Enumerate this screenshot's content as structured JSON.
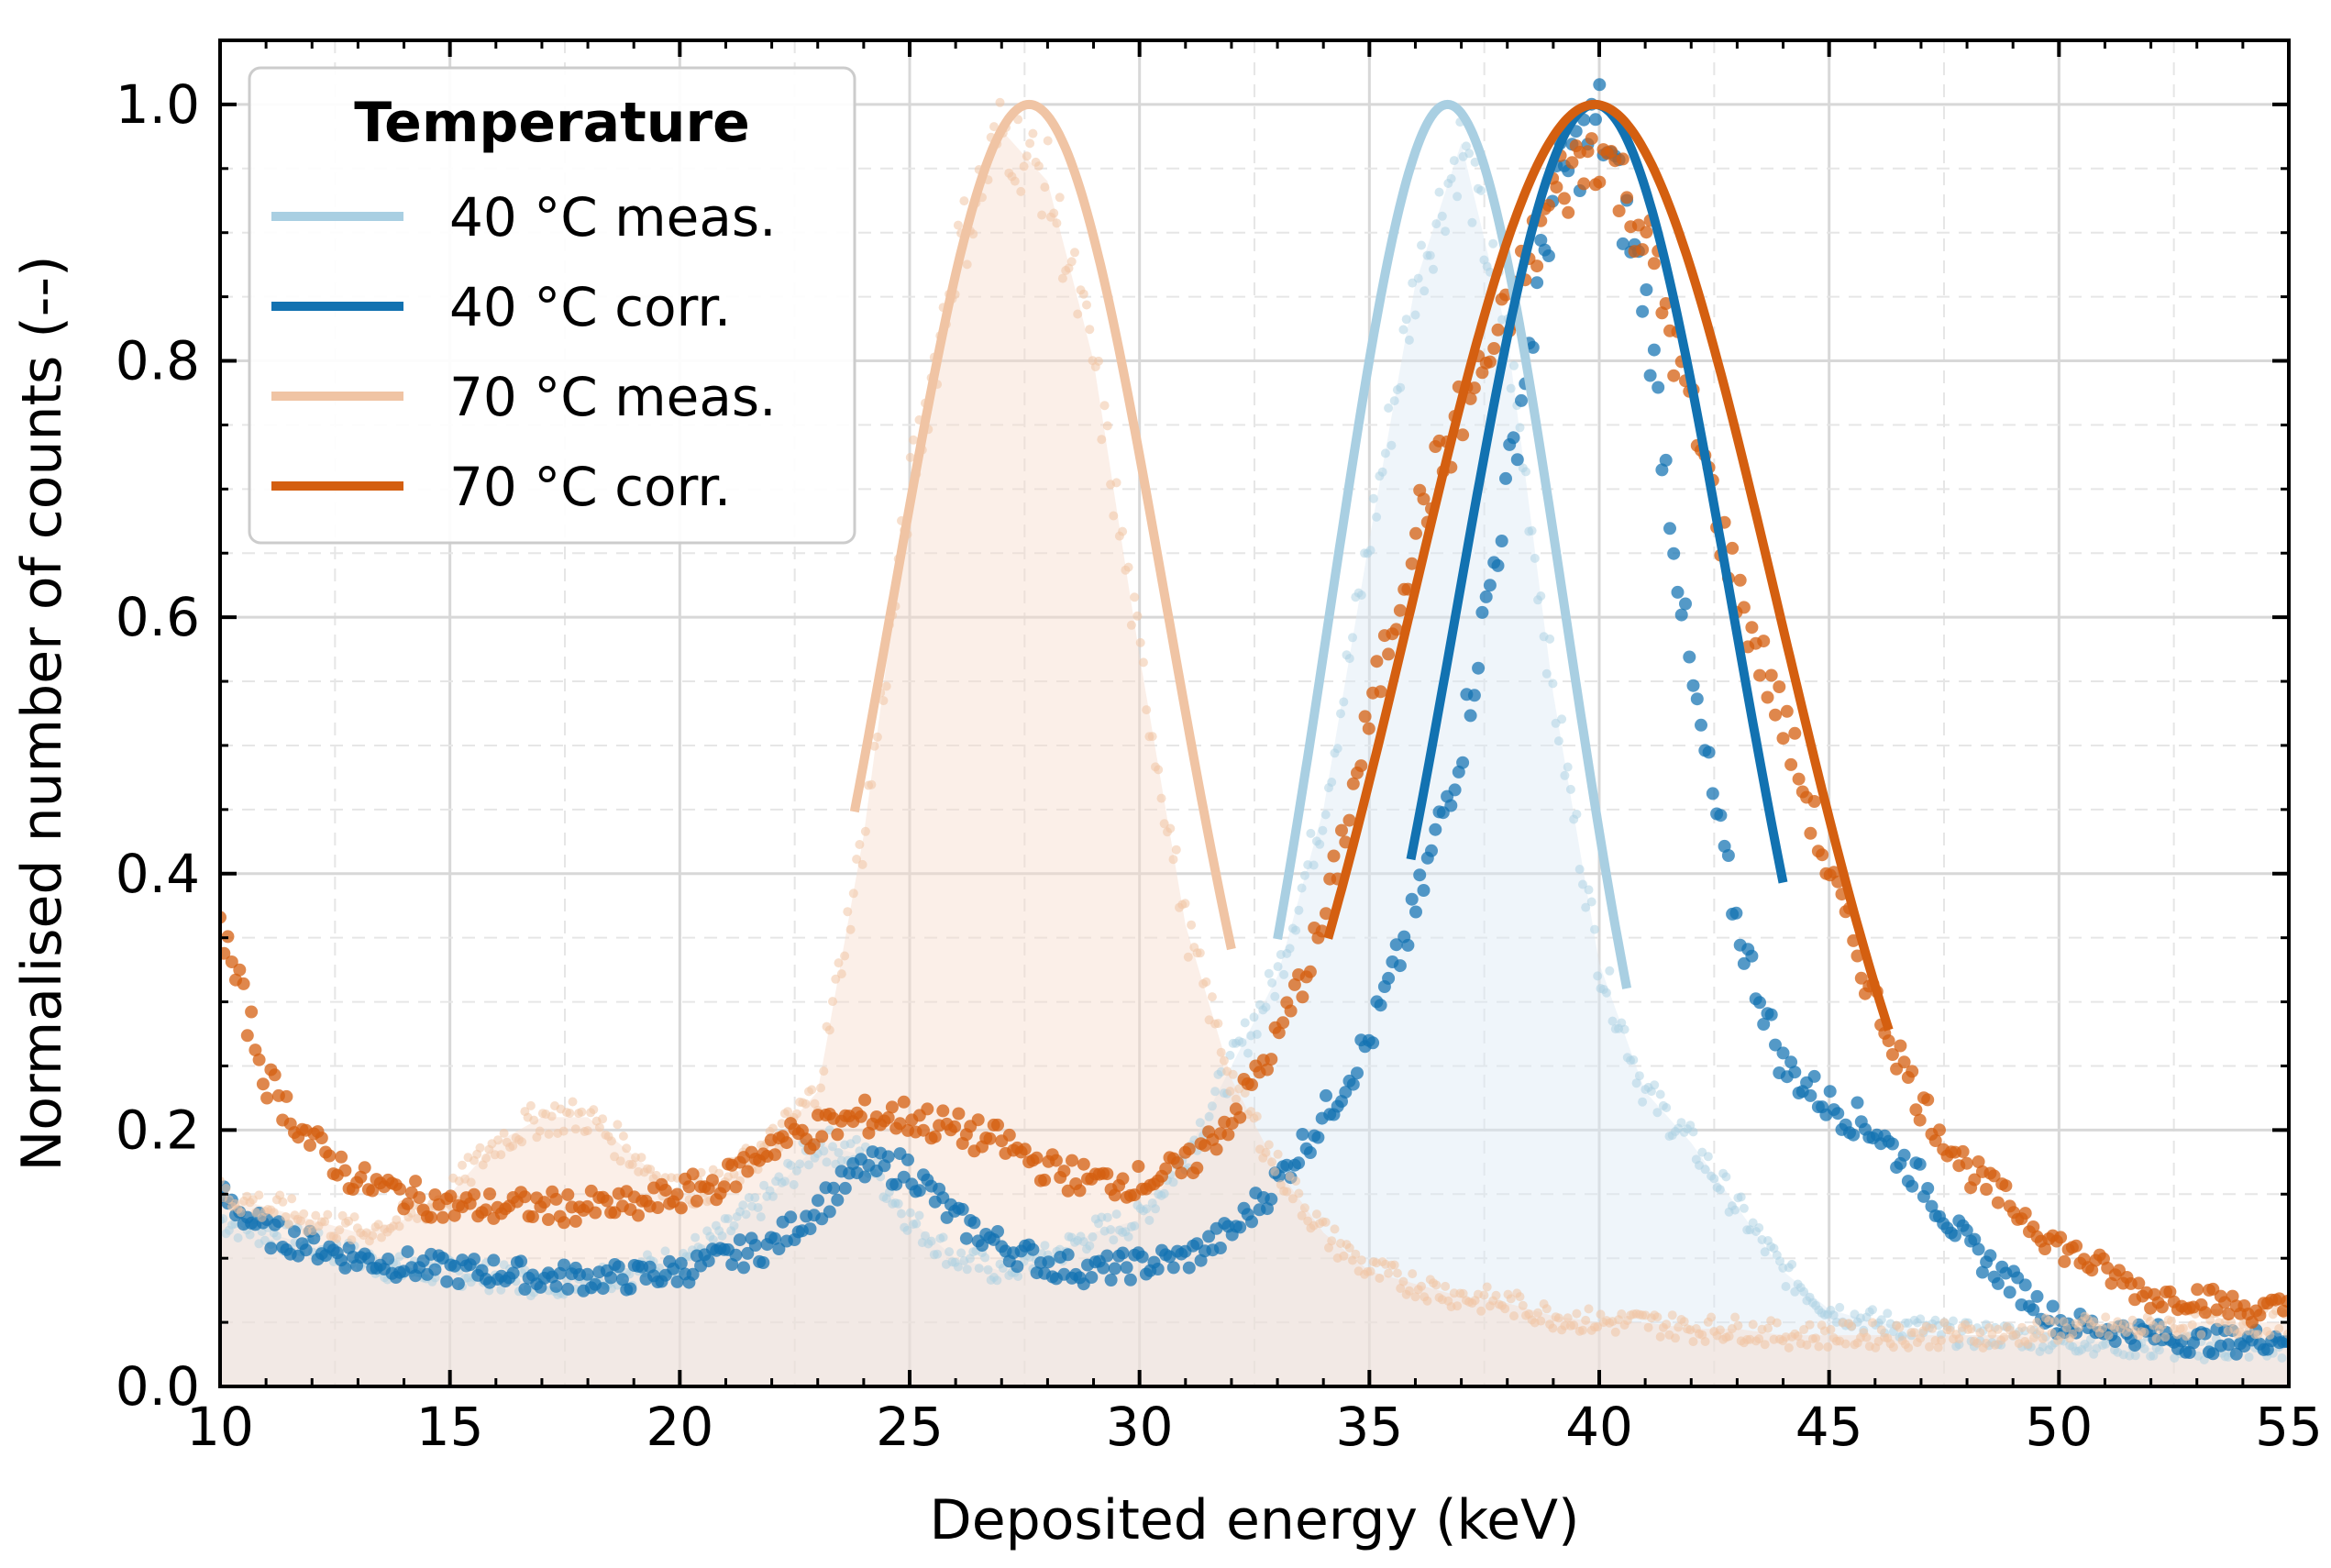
{
  "chart_data": {
    "type": "scatter",
    "title": "",
    "xlabel": "Deposited energy (keV)",
    "ylabel": "Normalised number of counts (--)",
    "xlim": [
      10,
      55
    ],
    "ylim": [
      0,
      1.05
    ],
    "xticks": [
      10,
      15,
      20,
      25,
      30,
      35,
      40,
      45,
      50,
      55
    ],
    "yticks": [
      0.0,
      0.2,
      0.4,
      0.6,
      0.8,
      1.0
    ],
    "xtick_labels": [
      "10",
      "15",
      "20",
      "25",
      "30",
      "35",
      "40",
      "45",
      "50",
      "55"
    ],
    "ytick_labels": [
      "0.0",
      "0.2",
      "0.4",
      "0.6",
      "0.8",
      "1.0"
    ],
    "grid": true,
    "legend": {
      "title": "Temperature",
      "position": "top-left",
      "entries": [
        {
          "label": "40 °C meas.",
          "color": "#a9cfe2"
        },
        {
          "label": "40 °C corr.",
          "color": "#1272b1"
        },
        {
          "label": "70 °C meas.",
          "color": "#f0c4a4"
        },
        {
          "label": "70 °C corr.",
          "color": "#d45f10"
        }
      ]
    },
    "series": [
      {
        "name": "40 °C meas.",
        "color": "#a9cfe2",
        "fit": {
          "model": "gaussian",
          "mean": 36.7,
          "sigma": 2.55,
          "amplitude": 1.0,
          "x_range": [
            33.0,
            40.6
          ]
        },
        "points": [
          [
            10,
            0.13
          ],
          [
            11,
            0.12
          ],
          [
            12,
            0.11
          ],
          [
            13,
            0.1
          ],
          [
            14,
            0.09
          ],
          [
            15,
            0.09
          ],
          [
            16,
            0.085
          ],
          [
            17,
            0.08
          ],
          [
            18,
            0.085
          ],
          [
            19,
            0.09
          ],
          [
            20,
            0.1
          ],
          [
            21,
            0.12
          ],
          [
            22,
            0.15
          ],
          [
            23,
            0.19
          ],
          [
            24,
            0.18
          ],
          [
            25,
            0.13
          ],
          [
            26,
            0.1
          ],
          [
            27,
            0.09
          ],
          [
            28,
            0.1
          ],
          [
            29,
            0.12
          ],
          [
            30,
            0.13
          ],
          [
            31,
            0.18
          ],
          [
            32,
            0.25
          ],
          [
            33,
            0.32
          ],
          [
            34,
            0.45
          ],
          [
            35,
            0.66
          ],
          [
            36,
            0.86
          ],
          [
            37,
            0.97
          ],
          [
            38,
            0.82
          ],
          [
            39,
            0.54
          ],
          [
            40,
            0.33
          ],
          [
            41,
            0.23
          ],
          [
            42,
            0.19
          ],
          [
            43,
            0.14
          ],
          [
            44,
            0.09
          ],
          [
            45,
            0.06
          ],
          [
            46,
            0.05
          ],
          [
            47,
            0.045
          ],
          [
            48,
            0.04
          ],
          [
            49,
            0.04
          ],
          [
            50,
            0.035
          ],
          [
            51,
            0.035
          ],
          [
            52,
            0.03
          ],
          [
            53,
            0.03
          ],
          [
            54,
            0.03
          ],
          [
            55,
            0.03
          ]
        ]
      },
      {
        "name": "40 °C corr.",
        "color": "#1272b1",
        "fit": {
          "model": "gaussian",
          "mean": 39.9,
          "sigma": 3.0,
          "amplitude": 1.0,
          "x_range": [
            35.9,
            44.0
          ]
        },
        "points": [
          [
            10,
            0.15
          ],
          [
            11,
            0.12
          ],
          [
            12,
            0.11
          ],
          [
            13,
            0.1
          ],
          [
            14,
            0.095
          ],
          [
            15,
            0.09
          ],
          [
            16,
            0.09
          ],
          [
            17,
            0.085
          ],
          [
            18,
            0.085
          ],
          [
            19,
            0.085
          ],
          [
            20,
            0.09
          ],
          [
            21,
            0.1
          ],
          [
            22,
            0.11
          ],
          [
            23,
            0.14
          ],
          [
            24,
            0.17
          ],
          [
            25,
            0.17
          ],
          [
            26,
            0.13
          ],
          [
            27,
            0.11
          ],
          [
            28,
            0.095
          ],
          [
            29,
            0.09
          ],
          [
            30,
            0.095
          ],
          [
            31,
            0.1
          ],
          [
            32,
            0.12
          ],
          [
            33,
            0.16
          ],
          [
            34,
            0.21
          ],
          [
            35,
            0.27
          ],
          [
            36,
            0.37
          ],
          [
            37,
            0.5
          ],
          [
            38,
            0.7
          ],
          [
            39,
            0.93
          ],
          [
            40,
            0.99
          ],
          [
            41,
            0.85
          ],
          [
            42,
            0.55
          ],
          [
            43,
            0.36
          ],
          [
            44,
            0.25
          ],
          [
            45,
            0.22
          ],
          [
            46,
            0.2
          ],
          [
            47,
            0.16
          ],
          [
            48,
            0.11
          ],
          [
            49,
            0.08
          ],
          [
            50,
            0.05
          ],
          [
            51,
            0.045
          ],
          [
            52,
            0.04
          ],
          [
            53,
            0.035
          ],
          [
            54,
            0.035
          ],
          [
            55,
            0.04
          ]
        ]
      },
      {
        "name": "70 °C meas.",
        "color": "#f0c4a4",
        "fit": {
          "model": "gaussian",
          "mean": 27.6,
          "sigma": 3.0,
          "amplitude": 1.0,
          "x_range": [
            23.8,
            32.0
          ]
        },
        "points": [
          [
            10,
            0.15
          ],
          [
            11,
            0.14
          ],
          [
            12,
            0.13
          ],
          [
            13,
            0.12
          ],
          [
            14,
            0.13
          ],
          [
            15,
            0.15
          ],
          [
            16,
            0.19
          ],
          [
            17,
            0.21
          ],
          [
            18,
            0.21
          ],
          [
            19,
            0.18
          ],
          [
            20,
            0.15
          ],
          [
            21,
            0.16
          ],
          [
            22,
            0.19
          ],
          [
            23,
            0.23
          ],
          [
            24,
            0.43
          ],
          [
            25,
            0.7
          ],
          [
            26,
            0.88
          ],
          [
            27,
            0.98
          ],
          [
            28,
            0.94
          ],
          [
            29,
            0.8
          ],
          [
            30,
            0.57
          ],
          [
            31,
            0.36
          ],
          [
            32,
            0.24
          ],
          [
            33,
            0.17
          ],
          [
            34,
            0.12
          ],
          [
            35,
            0.09
          ],
          [
            36,
            0.08
          ],
          [
            37,
            0.07
          ],
          [
            38,
            0.065
          ],
          [
            39,
            0.055
          ],
          [
            40,
            0.05
          ],
          [
            41,
            0.05
          ],
          [
            42,
            0.045
          ],
          [
            43,
            0.045
          ],
          [
            44,
            0.04
          ],
          [
            45,
            0.04
          ],
          [
            46,
            0.04
          ],
          [
            47,
            0.04
          ],
          [
            48,
            0.04
          ],
          [
            49,
            0.04
          ],
          [
            50,
            0.045
          ],
          [
            51,
            0.045
          ],
          [
            52,
            0.045
          ],
          [
            53,
            0.05
          ],
          [
            54,
            0.05
          ],
          [
            55,
            0.05
          ]
        ]
      },
      {
        "name": "70 °C corr.",
        "color": "#d45f10",
        "fit": {
          "model": "gaussian",
          "mean": 39.9,
          "sigma": 4.0,
          "amplitude": 1.0,
          "x_range": [
            34.1,
            46.3
          ]
        },
        "points": [
          [
            10,
            0.36
          ],
          [
            11,
            0.24
          ],
          [
            12,
            0.19
          ],
          [
            13,
            0.16
          ],
          [
            14,
            0.15
          ],
          [
            15,
            0.14
          ],
          [
            16,
            0.14
          ],
          [
            17,
            0.14
          ],
          [
            18,
            0.14
          ],
          [
            19,
            0.14
          ],
          [
            20,
            0.15
          ],
          [
            21,
            0.16
          ],
          [
            22,
            0.19
          ],
          [
            23,
            0.2
          ],
          [
            24,
            0.21
          ],
          [
            25,
            0.21
          ],
          [
            26,
            0.2
          ],
          [
            27,
            0.19
          ],
          [
            28,
            0.17
          ],
          [
            29,
            0.16
          ],
          [
            30,
            0.16
          ],
          [
            31,
            0.17
          ],
          [
            32,
            0.21
          ],
          [
            33,
            0.27
          ],
          [
            34,
            0.36
          ],
          [
            35,
            0.52
          ],
          [
            36,
            0.67
          ],
          [
            37,
            0.76
          ],
          [
            38,
            0.83
          ],
          [
            39,
            0.93
          ],
          [
            40,
            0.97
          ],
          [
            41,
            0.9
          ],
          [
            42,
            0.76
          ],
          [
            43,
            0.62
          ],
          [
            44,
            0.52
          ],
          [
            45,
            0.4
          ],
          [
            46,
            0.3
          ],
          [
            47,
            0.22
          ],
          [
            48,
            0.17
          ],
          [
            49,
            0.14
          ],
          [
            50,
            0.11
          ],
          [
            51,
            0.09
          ],
          [
            52,
            0.07
          ],
          [
            53,
            0.07
          ],
          [
            54,
            0.06
          ],
          [
            55,
            0.06
          ]
        ]
      }
    ]
  }
}
